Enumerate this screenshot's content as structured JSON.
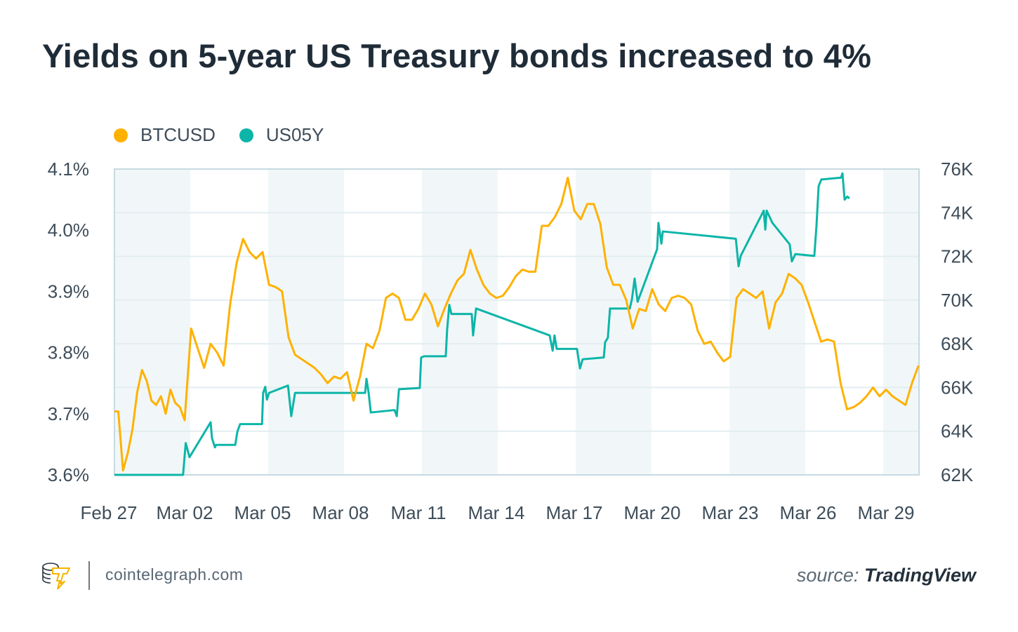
{
  "title": "Yields on 5-year US Treasury bonds increased to 4%",
  "footer": {
    "site": "cointelegraph.com",
    "source_prefix": "source:",
    "source_name": "TradingView",
    "logo_icon": "cointelegraph-logo-icon"
  },
  "colors": {
    "btc": "#FFB100",
    "us05y": "#0DB5A8",
    "band": "#F1F7F8",
    "grid": "#E3EDF0",
    "frame": "#C6DAE1"
  },
  "chart_data": {
    "type": "line",
    "legend_placement": "top-left",
    "grid": true,
    "x_ticks": [
      "Feb 27",
      "Mar 02",
      "Mar 05",
      "Mar 08",
      "Mar 11",
      "Mar 14",
      "Mar 17",
      "Mar 20",
      "Mar 23",
      "Mar 26",
      "Mar 29"
    ],
    "y_left": {
      "ticks": [
        "3.6%",
        "3.7%",
        "3.8%",
        "3.9%",
        "4.0%",
        "4.1%"
      ],
      "range": [
        3.6,
        4.1
      ],
      "unit": "%"
    },
    "y_right": {
      "ticks": [
        "62K",
        "64K",
        "66K",
        "68K",
        "70K",
        "72K",
        "74K",
        "76K"
      ],
      "range": [
        62,
        76
      ],
      "unit": "K USD"
    },
    "series": [
      {
        "name": "BTCUSD",
        "axis": "right",
        "start": "Feb 27 06:00",
        "step_hours": 6,
        "values": [
          64.9,
          64.9,
          62.2,
          63.0,
          64.1,
          65.8,
          66.8,
          66.3,
          65.4,
          65.2,
          65.6,
          64.8,
          65.9,
          65.3,
          65.1,
          64.5,
          68.7,
          67.8,
          66.9,
          68.0,
          67.6,
          67.0,
          69.8,
          71.7,
          72.8,
          72.2,
          71.9,
          72.2,
          70.7,
          70.6,
          70.4,
          68.3,
          67.5,
          67.3,
          67.1,
          66.9,
          66.6,
          66.2,
          66.5,
          66.4,
          66.7,
          65.4,
          66.5,
          68.0,
          67.8,
          68.6,
          70.1,
          70.3,
          70.1,
          69.1,
          69.1,
          69.6,
          70.3,
          69.8,
          68.8,
          69.6,
          70.3,
          70.9,
          71.2,
          72.3,
          71.4,
          70.7,
          70.3,
          70.1,
          70.2,
          70.6,
          71.1,
          71.4,
          71.3,
          71.3,
          73.4,
          73.4,
          73.8,
          74.4,
          75.6,
          74.1,
          73.7,
          74.4,
          74.4,
          73.5,
          71.5,
          70.7,
          70.7,
          70.0,
          68.7,
          69.6,
          69.5,
          70.5,
          69.8,
          69.5,
          70.1,
          70.2,
          70.1,
          69.8,
          68.6,
          68.0,
          68.1,
          67.6,
          67.2,
          67.4,
          70.1,
          70.5,
          70.3,
          70.1,
          70.4,
          68.7,
          69.9,
          70.3,
          71.2,
          71.0,
          70.7,
          69.9,
          69.0,
          68.1,
          68.2,
          68.1,
          66.2,
          65.0,
          65.1,
          65.3,
          65.6,
          66.0,
          65.6,
          65.9,
          65.6,
          65.4,
          65.2,
          66.2,
          67.0
        ]
      },
      {
        "name": "US05Y",
        "axis": "left",
        "points": [
          [
            "Feb 27 07:00",
            3.6
          ],
          [
            "Mar 01 22:00",
            3.6
          ],
          [
            "Mar 02 00:00",
            3.631
          ],
          [
            "Mar 02 01:00",
            3.652
          ],
          [
            "Mar 02 04:30",
            3.629
          ],
          [
            "Mar 03 00:00",
            3.686
          ],
          [
            "Mar 03 01:15",
            3.66
          ],
          [
            "Mar 03 04:00",
            3.645
          ],
          [
            "Mar 03 05:00",
            3.649
          ],
          [
            "Mar 03 22:45",
            3.649
          ],
          [
            "Mar 04 00:45",
            3.671
          ],
          [
            "Mar 04 03:15",
            3.683
          ],
          [
            "Mar 04 23:30",
            3.683
          ],
          [
            "Mar 05 00:30",
            3.734
          ],
          [
            "Mar 05 02:30",
            3.744
          ],
          [
            "Mar 05 04:00",
            3.723
          ],
          [
            "Mar 05 06:00",
            3.734
          ],
          [
            "Mar 05 23:30",
            3.746
          ],
          [
            "Mar 06 02:30",
            3.696
          ],
          [
            "Mar 06 06:00",
            3.734
          ],
          [
            "Mar 08 22:45",
            3.734
          ],
          [
            "Mar 09 00:00",
            3.757
          ],
          [
            "Mar 09 02:00",
            3.734
          ],
          [
            "Mar 09 04:00",
            3.702
          ],
          [
            "Mar 10 02:00",
            3.706
          ],
          [
            "Mar 10 04:00",
            3.696
          ],
          [
            "Mar 10 06:00",
            3.74
          ],
          [
            "Mar 11 01:15",
            3.742
          ],
          [
            "Mar 11 02:30",
            3.792
          ],
          [
            "Mar 11 05:15",
            3.794
          ],
          [
            "Mar 12 01:15",
            3.794
          ],
          [
            "Mar 12 02:30",
            3.837
          ],
          [
            "Mar 12 04:30",
            3.878
          ],
          [
            "Mar 12 06:30",
            3.863
          ],
          [
            "Mar 13 01:15",
            3.863
          ],
          [
            "Mar 13 02:30",
            3.828
          ],
          [
            "Mar 13 05:15",
            3.872
          ],
          [
            "Mar 16 01:15",
            3.828
          ],
          [
            "Mar 16 04:00",
            3.803
          ],
          [
            "Mar 16 05:45",
            3.828
          ],
          [
            "Mar 16 07:45",
            3.806
          ],
          [
            "Mar 17 02:30",
            3.806
          ],
          [
            "Mar 17 05:15",
            3.774
          ],
          [
            "Mar 17 07:45",
            3.789
          ],
          [
            "Mar 18 03:15",
            3.792
          ],
          [
            "Mar 18 04:30",
            3.817
          ],
          [
            "Mar 18 07:00",
            3.824
          ],
          [
            "Mar 18 09:00",
            3.872
          ],
          [
            "Mar 19 03:15",
            3.872
          ],
          [
            "Mar 19 05:15",
            3.887
          ],
          [
            "Mar 19 07:45",
            3.921
          ],
          [
            "Mar 19 10:30",
            3.883
          ],
          [
            "Mar 20 04:30",
            3.969
          ],
          [
            "Mar 20 05:45",
            4.012
          ],
          [
            "Mar 20 08:30",
            3.978
          ],
          [
            "Mar 20 09:45",
            3.998
          ],
          [
            "Mar 23 05:15",
            3.986
          ],
          [
            "Mar 23 07:45",
            3.941
          ],
          [
            "Mar 23 09:45",
            3.958
          ],
          [
            "Mar 24 07:00",
            4.032
          ],
          [
            "Mar 24 08:30",
            4.001
          ],
          [
            "Mar 24 09:45",
            4.032
          ],
          [
            "Mar 24 15:00",
            4.012
          ],
          [
            "Mar 25 07:00",
            3.977
          ],
          [
            "Mar 25 09:00",
            3.949
          ],
          [
            "Mar 25 12:15",
            3.961
          ],
          [
            "Mar 26 05:45",
            3.958
          ],
          [
            "Mar 26 07:45",
            4.007
          ],
          [
            "Mar 26 09:45",
            4.072
          ],
          [
            "Mar 26 12:15",
            4.083
          ],
          [
            "Mar 27 06:30",
            4.086
          ],
          [
            "Mar 27 07:45",
            4.093
          ],
          [
            "Mar 27 09:45",
            4.05
          ],
          [
            "Mar 27 12:15",
            4.055
          ],
          [
            "Mar 27 14:15",
            4.052
          ]
        ]
      }
    ]
  }
}
